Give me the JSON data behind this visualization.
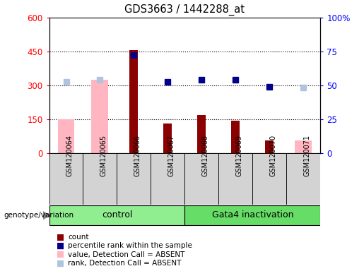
{
  "title": "GDS3663 / 1442288_at",
  "samples": [
    "GSM120064",
    "GSM120065",
    "GSM120066",
    "GSM120067",
    "GSM120068",
    "GSM120069",
    "GSM120070",
    "GSM120071"
  ],
  "count": [
    null,
    null,
    455,
    130,
    170,
    145,
    55,
    null
  ],
  "percentile_rank_left": [
    null,
    null,
    435,
    315,
    325,
    325,
    295,
    null
  ],
  "value_absent": [
    150,
    325,
    null,
    null,
    null,
    null,
    null,
    55
  ],
  "rank_absent_left": [
    315,
    325,
    null,
    null,
    null,
    null,
    null,
    290
  ],
  "left_ylim": [
    0,
    600
  ],
  "right_ylim": [
    0,
    100
  ],
  "left_yticks": [
    0,
    150,
    300,
    450,
    600
  ],
  "left_yticklabels": [
    "0",
    "150",
    "300",
    "450",
    "600"
  ],
  "right_yticks": [
    0,
    25,
    50,
    75,
    100
  ],
  "right_yticklabels": [
    "0",
    "25",
    "50",
    "75",
    "100%"
  ],
  "color_count": "#8B0000",
  "color_percentile": "#00008B",
  "color_value_absent": "#FFB6C1",
  "color_rank_absent": "#B0C4DE",
  "bar_width": 0.5,
  "plot_bg": "#ffffff",
  "group_defs": [
    {
      "label": "control",
      "start": 0,
      "end": 3,
      "color": "#90EE90"
    },
    {
      "label": "Gata4 inactivation",
      "start": 4,
      "end": 7,
      "color": "#66DD66"
    }
  ],
  "legend_items": [
    {
      "label": "count",
      "color": "#8B0000"
    },
    {
      "label": "percentile rank within the sample",
      "color": "#00008B"
    },
    {
      "label": "value, Detection Call = ABSENT",
      "color": "#FFB6C1"
    },
    {
      "label": "rank, Detection Call = ABSENT",
      "color": "#B0C4DE"
    }
  ],
  "dotted_grid": [
    150,
    300,
    450
  ]
}
